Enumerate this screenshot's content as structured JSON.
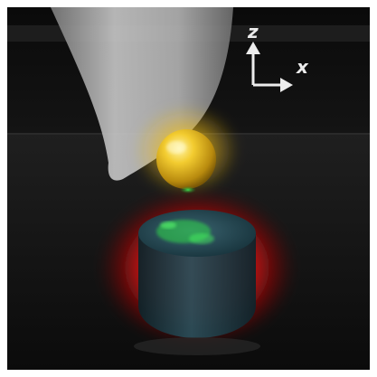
{
  "axes": {
    "z_label": "z",
    "x_label": "x"
  },
  "colors": {
    "background": "#101010",
    "tip": "#c9c9c9",
    "sphere": "#f2c21a",
    "glow": "#ff1a1a",
    "pillar": "#1f3b45",
    "emission": "#2fd84a"
  }
}
